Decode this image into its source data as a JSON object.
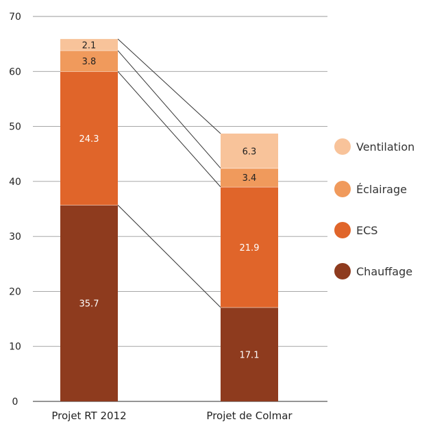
{
  "chart_data": {
    "type": "bar",
    "stacked": true,
    "categories": [
      "Projet RT 2012",
      "Projet de Colmar"
    ],
    "series": [
      {
        "name": "Chauffage",
        "values": [
          35.7,
          17.1
        ],
        "color": "#8e3b1e",
        "label_color": "#ffffff"
      },
      {
        "name": "ECS",
        "values": [
          24.3,
          21.9
        ],
        "color": "#e0652a",
        "label_color": "#ffffff"
      },
      {
        "name": "Éclairage",
        "values": [
          3.8,
          3.4
        ],
        "color": "#f09a5c",
        "label_color": "#222222"
      },
      {
        "name": "Ventilation",
        "values": [
          2.1,
          6.3
        ],
        "color": "#f8c39a",
        "label_color": "#222222"
      }
    ],
    "value_labels": [
      [
        "35.7",
        "17.1"
      ],
      [
        "24.3",
        "21.9"
      ],
      [
        "3.8",
        "3.4"
      ],
      [
        "2.1",
        "6.3"
      ]
    ],
    "ylim": [
      0,
      70
    ],
    "yticks": [
      0,
      10,
      20,
      30,
      40,
      50,
      60,
      70
    ],
    "grid": true,
    "legend_position": "right",
    "legend_order": [
      "Ventilation",
      "Éclairage",
      "ECS",
      "Chauffage"
    ],
    "connector_lines": true,
    "title": "",
    "xlabel": "",
    "ylabel": ""
  }
}
